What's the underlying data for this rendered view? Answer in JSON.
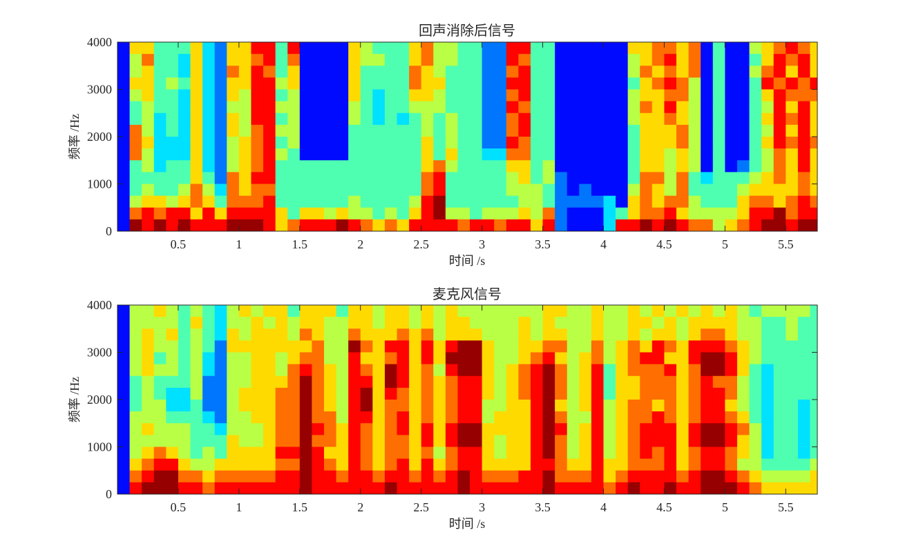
{
  "chart_data": [
    {
      "type": "heatmap",
      "title": "回声消除后信号",
      "xlabel": "时间 /s",
      "ylabel": "频率 /Hz",
      "xlim": [
        0,
        5.76
      ],
      "ylim": [
        0,
        4000
      ],
      "xticks": [
        "0.5",
        "1",
        "1.5",
        "2",
        "2.5",
        "3",
        "3.5",
        "4",
        "4.5",
        "5",
        "5.5"
      ],
      "yticks": [
        "0",
        "1000",
        "2000",
        "3000",
        "4000"
      ],
      "colormap": "jet",
      "time_step_s": 0.1,
      "freq_step_hz": 250,
      "intensity_scale": "0-9, rows from 4000 Hz down to 0 Hz",
      "intensity": [
        "1664446326 6884811116 5444675544 2288441111 1166776714 11567876",
        "1574436326 6784711116 5544675544 2287441111 1156786714 11468786",
        "1564436327 6874611116 4444765444 2278441111 1157676714 11578686",
        "1664546326 6885611116 4444766444 2288441111 1146787514 11487878",
        "1564436326 5884511116 4344665444 2278441111 1156677514 11468777",
        "1454436325 5885511115 4344555444 2287441111 1157686514 11458686",
        "1453436326 5884511115 4343454544 2278441111 1156676514 11468786",
        "1753436326 5785511114 4444454544 2278441111 1146667514 11458686",
        "1763336325 6784511114 4444464544 2287441111 1146667514 11468787",
        "1753336325 6785411114 4444464644 3377441111 1146656514 11457686",
        "1453446325 6784444444 4444467544 4466451111 1146656514 12457686",
        "1444446427 6884444444 4444478444 4456452111 1147757434 44567676",
        "1454457537 6774444444 4444478444 4455542121 1157657444 45666676",
        "1566567647 7784444445 4444589444 4445542222 3167677544 46776787",
        "1787886868 8886466565 5454689554 5556572111 3467786555 56889788",
        "1989898889 9986788898 7676888878 8788682111 3889898775 67899899"
      ]
    },
    {
      "type": "heatmap",
      "title": "麦克风信号",
      "xlabel": "时间 /s",
      "ylabel": "频率 /Hz",
      "xlim": [
        0,
        5.76
      ],
      "ylim": [
        0,
        4000
      ],
      "xticks": [
        "0.5",
        "1",
        "1.5",
        "2",
        "2.5",
        "3",
        "3.5",
        "4",
        "4.5",
        "5",
        "5.5"
      ],
      "yticks": [
        "0",
        "1000",
        "2000",
        "3000",
        "4000"
      ],
      "colormap": "jet",
      "time_step_s": 0.1,
      "freq_step_hz": 250,
      "intensity_scale": "0-9, rows from 4000 Hz down to 0 Hz",
      "intensity": [
        "1556545435 6566466646 6566565655 5555566556 5565656565 65455554",
        "1555546435 5656566556 6566565665 5556565556 5566565666 65544544",
        "1565645436 5666576557 6667675666 5556566556 5565665677 65544544",
        "1565545426 6666667559 7688686899 6556677557 5676876888 76544444",
        "1564545325 5665677558 6678686999 6556786567 5678866899 86544444",
        "1565545325 5665787658 7698675899 6567897568 4677786799 86434444",
        "1454445225 5666797658 8698676788 6567897568 4667776787 75434444",
        "1454335225 6667797658 9687676788 6567897568 4667776788 75434444",
        "1455334225 6667797658 9677676788 5566896568 5677676788 65434434",
        "1555444325 5667797758 8678676788 5666897558 5677876788 76434434",
        "1565554435 5567798768 7678686899 6666898568 5678886899 87534434",
        "1555554446 5567797768 7677686899 6566897568 5678886899 86534434",
        "1567654546 6668898668 7677675788 6566897568 5678786788 76534434",
        "1678865566 6667798768 7678686788 6666887668 6677786788 75544445",
        "1789977677 7778898878 8788787898 7778897778 6788887899 87655556",
        "1899988788 8888898888 8898888898 8888898888 7898898899 98766666"
      ]
    }
  ]
}
